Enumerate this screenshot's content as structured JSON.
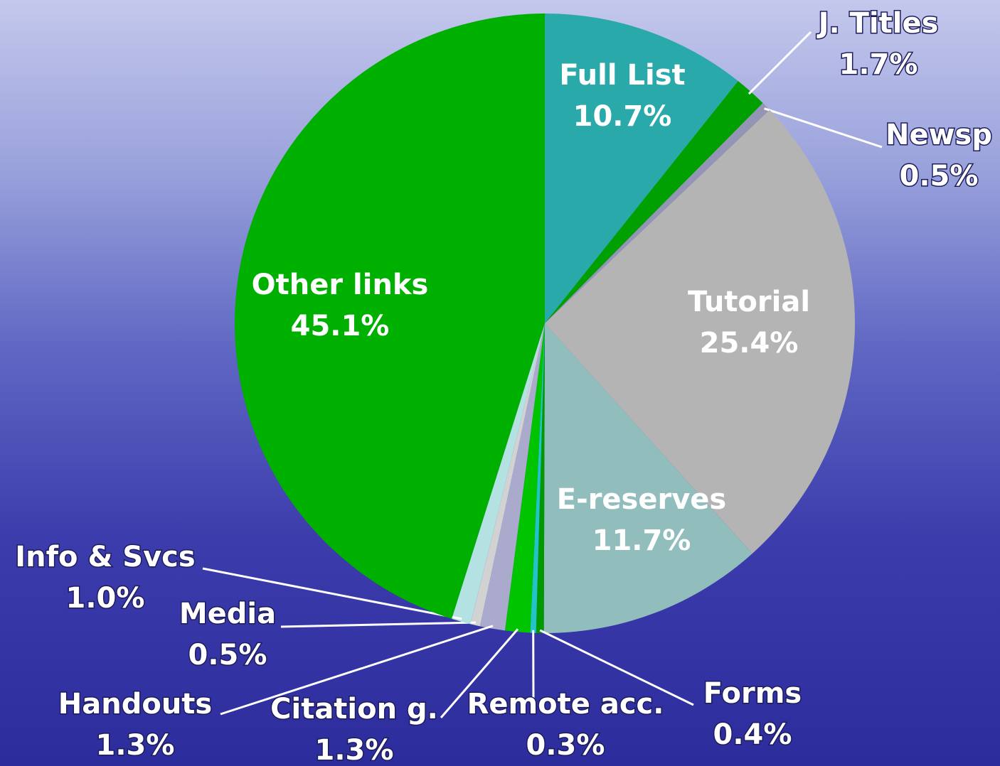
{
  "chart_data": {
    "type": "pie",
    "categories": [
      "Full List",
      "J. Titles",
      "Newsp",
      "Tutorial",
      "E-reserves",
      "Forms",
      "Remote acc.",
      "Citation g.",
      "Handouts",
      "Media",
      "Info & Svcs",
      "Other links"
    ],
    "values": [
      10.7,
      1.7,
      0.5,
      25.4,
      11.7,
      0.4,
      0.3,
      1.3,
      1.3,
      0.5,
      1.0,
      45.1
    ],
    "value_labels": [
      "10.7%",
      "1.7%",
      "0.5%",
      "25.4%",
      "11.7%",
      "0.4%",
      "0.3%",
      "1.3%",
      "1.3%",
      "0.5%",
      "1.0%",
      "45.1%"
    ],
    "colors": [
      "#2aa9aa",
      "#00a000",
      "#9494b4",
      "#b4b4b4",
      "#92bdbd",
      "#009a00",
      "#22c4c8",
      "#00c400",
      "#aaaacc",
      "#d2d2d2",
      "#b4e2e2",
      "#00b000"
    ]
  }
}
